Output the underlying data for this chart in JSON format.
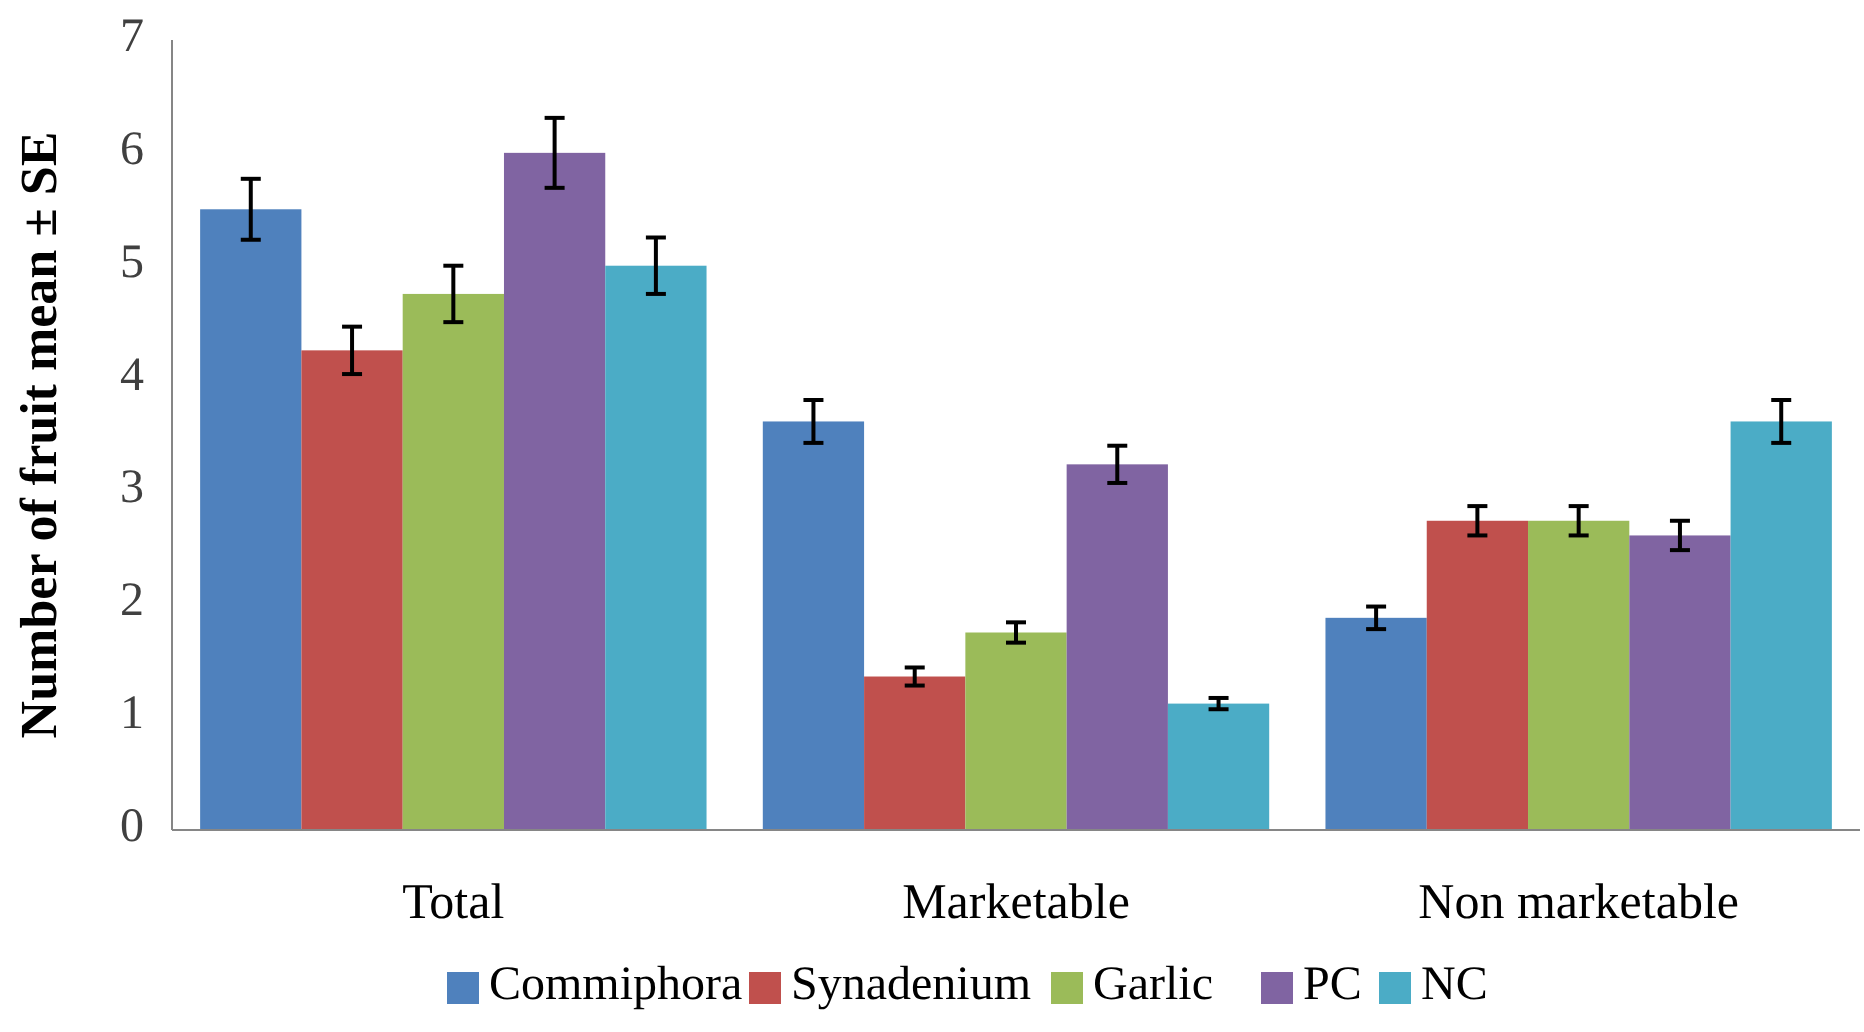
{
  "chart_data": {
    "type": "bar",
    "ylabel": "Number of fruit mean ± SE",
    "categories": [
      "Total",
      "Marketable",
      "Non marketable"
    ],
    "series": [
      {
        "name": "Commiphora",
        "color": "#4f81bd",
        "values": [
          5.5,
          3.62,
          1.88
        ],
        "errors": [
          0.27,
          0.19,
          0.1
        ]
      },
      {
        "name": "Synadenium",
        "color": "#c0504d",
        "values": [
          4.25,
          1.36,
          2.74
        ],
        "errors": [
          0.21,
          0.08,
          0.13
        ]
      },
      {
        "name": "Garlic",
        "color": "#9bbb59",
        "values": [
          4.75,
          1.75,
          2.74
        ],
        "errors": [
          0.25,
          0.09,
          0.13
        ]
      },
      {
        "name": "PC",
        "color": "#8064a2",
        "values": [
          6.0,
          3.24,
          2.61
        ],
        "errors": [
          0.31,
          0.165,
          0.13
        ]
      },
      {
        "name": "NC",
        "color": "#4bacc6",
        "values": [
          5.0,
          1.12,
          3.62
        ],
        "errors": [
          0.25,
          0.05,
          0.19
        ]
      }
    ],
    "ylim": [
      0,
      7
    ],
    "yticks": [
      0,
      1,
      2,
      3,
      4,
      5,
      6,
      7
    ],
    "grid": false,
    "legend": "bottom"
  }
}
